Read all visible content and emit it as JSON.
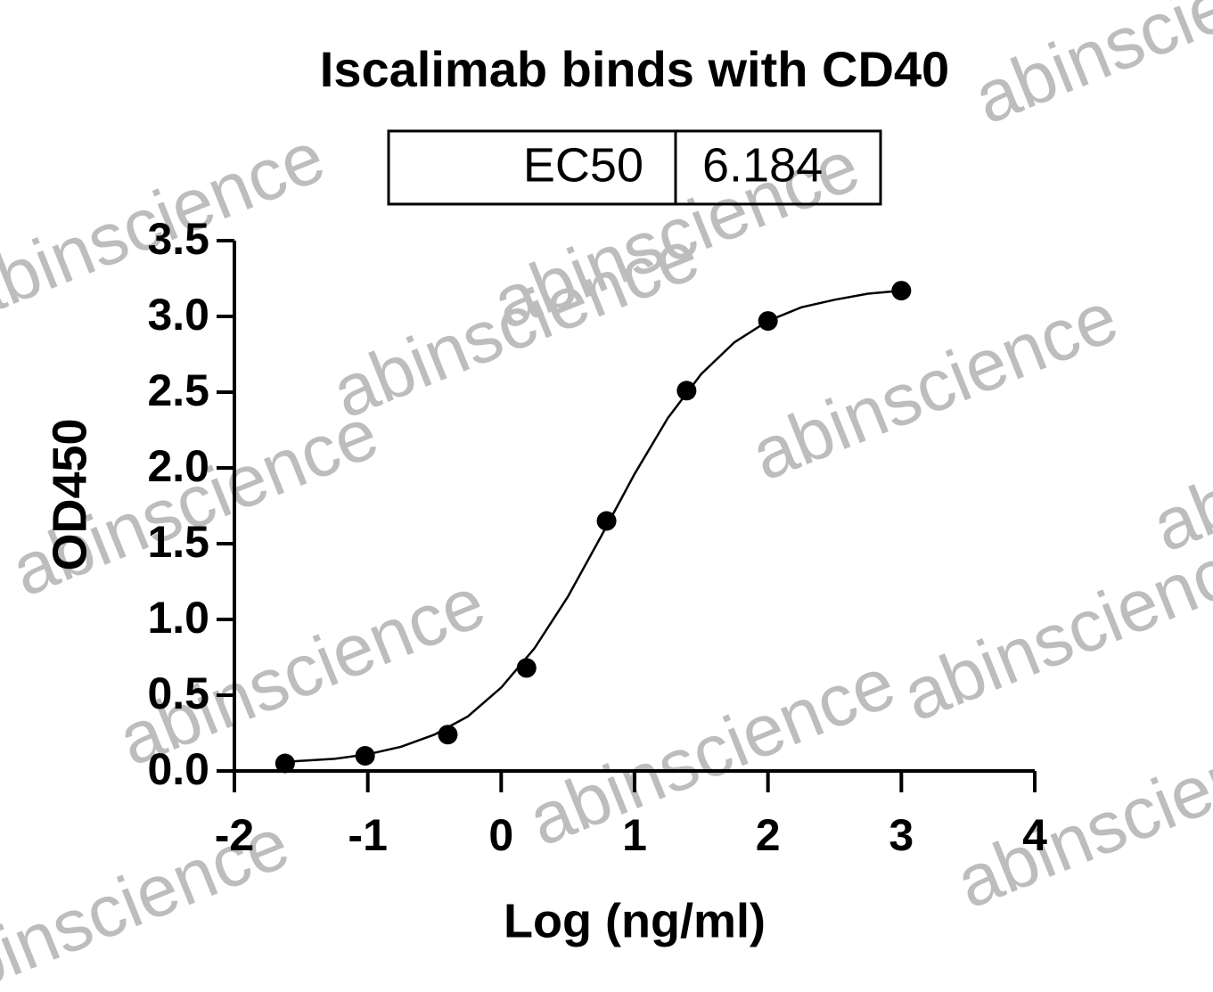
{
  "chart_data": {
    "type": "scatter",
    "title": "Iscalimab binds with CD40",
    "table": {
      "label": "EC50",
      "value": "6.184"
    },
    "xlabel": "Log (ng/ml)",
    "ylabel": "OD450",
    "x": [
      -1.62,
      -1.02,
      -0.4,
      0.19,
      0.79,
      1.39,
      2.0,
      3.0
    ],
    "values": [
      0.05,
      0.1,
      0.24,
      0.68,
      1.65,
      2.51,
      2.97,
      3.17
    ],
    "color": "#000000",
    "curve": {
      "x": [
        -1.62,
        -1.25,
        -1,
        -0.75,
        -0.5,
        -0.25,
        0,
        0.25,
        0.5,
        0.75,
        1,
        1.25,
        1.5,
        1.75,
        2,
        2.25,
        2.5,
        2.75,
        3
      ],
      "y": [
        0.06,
        0.08,
        0.11,
        0.16,
        0.24,
        0.36,
        0.55,
        0.81,
        1.15,
        1.55,
        1.96,
        2.33,
        2.62,
        2.83,
        2.97,
        3.06,
        3.11,
        3.15,
        3.17
      ]
    },
    "xlim": [
      -2,
      4
    ],
    "xticks": [
      -2,
      -1,
      0,
      1,
      2,
      3,
      4
    ],
    "ylim": [
      0,
      3.5
    ],
    "yticks": [
      {
        "value": 0,
        "label": "0.0"
      },
      0.5,
      {
        "value": 1,
        "label": "1.0"
      },
      1.5,
      {
        "value": 2,
        "label": "2.0"
      },
      2.5,
      {
        "value": 3,
        "label": "3.0"
      },
      3.5
    ],
    "watermark": "abinscience"
  }
}
